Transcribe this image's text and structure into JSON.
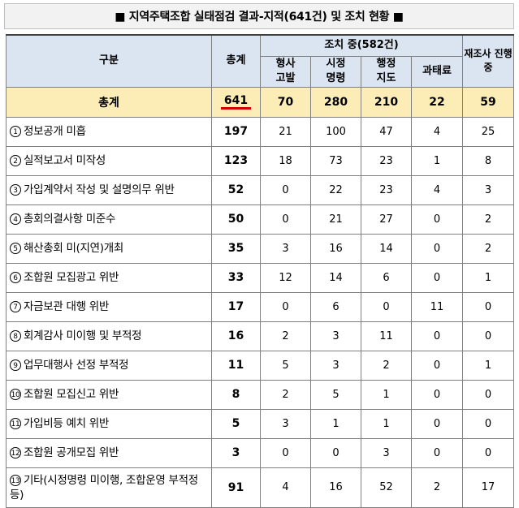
{
  "title": "■ 지역주택조합 실태점검 결과-지적(641건) 및 조치 현황 ■",
  "header": {
    "category": "구분",
    "total": "총계",
    "actions_group": "조치 중(582건)",
    "criminal": "형사\n고발",
    "corrective": "시정\n명령",
    "guidance": "행정\n지도",
    "fine": "과태료",
    "reinspection": "재조사 진행중"
  },
  "total_row": {
    "label": "총계",
    "total": "641",
    "criminal": "70",
    "corrective": "280",
    "guidance": "210",
    "fine": "22",
    "reinspection": "59"
  },
  "rows": [
    {
      "mark": "1",
      "label": "정보공개 미흡",
      "total": "197",
      "criminal": "21",
      "corrective": "100",
      "guidance": "47",
      "fine": "4",
      "reinspection": "25"
    },
    {
      "mark": "2",
      "label": "실적보고서 미작성",
      "total": "123",
      "criminal": "18",
      "corrective": "73",
      "guidance": "23",
      "fine": "1",
      "reinspection": "8"
    },
    {
      "mark": "3",
      "label": "가입계약서 작성 및 설명의무 위반",
      "total": "52",
      "criminal": "0",
      "corrective": "22",
      "guidance": "23",
      "fine": "4",
      "reinspection": "3"
    },
    {
      "mark": "4",
      "label": "총회의결사항 미준수",
      "total": "50",
      "criminal": "0",
      "corrective": "21",
      "guidance": "27",
      "fine": "0",
      "reinspection": "2"
    },
    {
      "mark": "5",
      "label": "해산총회 미(지연)개최",
      "total": "35",
      "criminal": "3",
      "corrective": "16",
      "guidance": "14",
      "fine": "0",
      "reinspection": "2"
    },
    {
      "mark": "6",
      "label": "조합원 모집광고 위반",
      "total": "33",
      "criminal": "12",
      "corrective": "14",
      "guidance": "6",
      "fine": "0",
      "reinspection": "1"
    },
    {
      "mark": "7",
      "label": "자금보관 대행 위반",
      "total": "17",
      "criminal": "0",
      "corrective": "6",
      "guidance": "0",
      "fine": "11",
      "reinspection": "0"
    },
    {
      "mark": "8",
      "label": "회계감사 미이행 및 부적정",
      "total": "16",
      "criminal": "2",
      "corrective": "3",
      "guidance": "11",
      "fine": "0",
      "reinspection": "0"
    },
    {
      "mark": "9",
      "label": "업무대행사 선정 부적정",
      "total": "11",
      "criminal": "5",
      "corrective": "3",
      "guidance": "2",
      "fine": "0",
      "reinspection": "1"
    },
    {
      "mark": "10",
      "label": "조합원 모집신고 위반",
      "total": "8",
      "criminal": "2",
      "corrective": "5",
      "guidance": "1",
      "fine": "0",
      "reinspection": "0"
    },
    {
      "mark": "11",
      "label": "가입비등 예치 위반",
      "total": "5",
      "criminal": "3",
      "corrective": "1",
      "guidance": "1",
      "fine": "0",
      "reinspection": "0"
    },
    {
      "mark": "12",
      "label": "조합원 공개모집 위반",
      "total": "3",
      "criminal": "0",
      "corrective": "0",
      "guidance": "3",
      "fine": "0",
      "reinspection": "0"
    },
    {
      "mark": "13",
      "label": "기타(시정명령 미이행, 조합운영 부적정 등)",
      "total": "91",
      "criminal": "4",
      "corrective": "16",
      "guidance": "52",
      "fine": "2",
      "reinspection": "17"
    }
  ]
}
